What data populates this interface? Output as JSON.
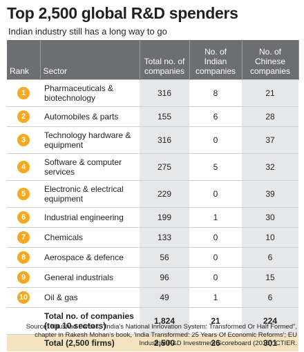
{
  "header": {
    "title": "Top 2,500 global R&D spenders",
    "subtitle": "Indian industry still has a long way to go"
  },
  "table": {
    "columns": [
      "Rank",
      "Sector",
      "Total no. of companies",
      "No. of Indian companies",
      "No. of Chinese companies"
    ],
    "rows": [
      [
        "1",
        "Pharmaceuticals & biotechnology",
        "316",
        "8",
        "21"
      ],
      [
        "2",
        "Automobiles & parts",
        "155",
        "6",
        "28"
      ],
      [
        "3",
        "Technology hardware & equipment",
        "316",
        "0",
        "37"
      ],
      [
        "4",
        "Software & computer services",
        "275",
        "5",
        "32"
      ],
      [
        "5",
        "Electronic & electrical equipment",
        "229",
        "0",
        "39"
      ],
      [
        "6",
        "Industrial engineering",
        "199",
        "1",
        "30"
      ],
      [
        "7",
        "Chemicals",
        "133",
        "0",
        "10"
      ],
      [
        "8",
        "Aerospace & defence",
        "56",
        "0",
        "6"
      ],
      [
        "9",
        "General industrials",
        "96",
        "0",
        "15"
      ],
      [
        "10",
        "Oil & gas",
        "49",
        "1",
        "6"
      ]
    ],
    "totals": [
      [
        "Total no. of companies (top 10 sectors)",
        "1,824",
        "21",
        "224"
      ],
      [
        "Total (2,500 firms)",
        "2,500",
        "26",
        "301"
      ]
    ]
  },
  "source": "Source: Naushad Forbes, \"India's National Innovation System: Transformed Or Half Formed\", chapter in Rakesh Mohan's book, 'India Transformed: 25 Years Of Economic Reforms'; EU Industrial R&D Investment Scoreboard (2015); CTIER."
}
